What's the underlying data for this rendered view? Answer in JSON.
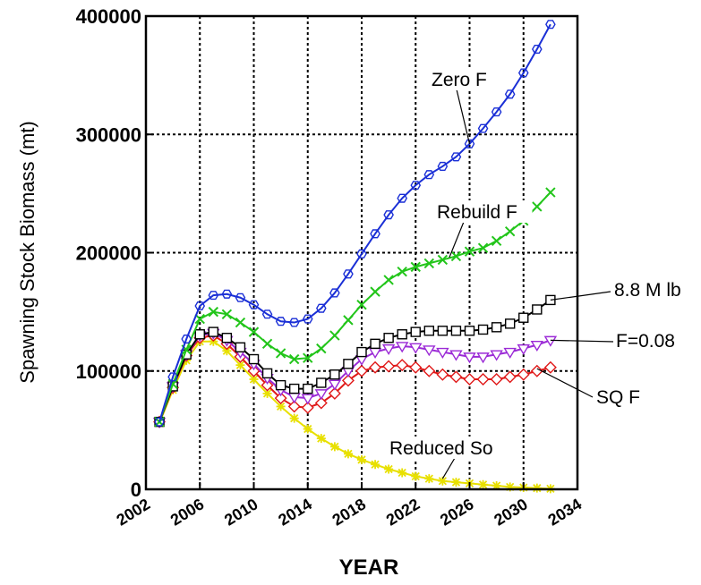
{
  "chart_data": {
    "type": "line",
    "title": "",
    "xlabel": "YEAR",
    "ylabel": "Spawning Stock Biomass (mt)",
    "xlim": [
      2002,
      2034
    ],
    "ylim": [
      0,
      400000
    ],
    "xticks": [
      "2002",
      "2006",
      "2010",
      "2014",
      "2018",
      "2022",
      "2026",
      "2030",
      "2034"
    ],
    "yticks": [
      "0",
      "100000",
      "200000",
      "300000",
      "400000"
    ],
    "grid": true,
    "x": [
      2003,
      2004,
      2005,
      2006,
      2007,
      2008,
      2009,
      2010,
      2011,
      2012,
      2013,
      2014,
      2015,
      2016,
      2017,
      2018,
      2019,
      2020,
      2021,
      2022,
      2023,
      2024,
      2025,
      2026,
      2027,
      2028,
      2029,
      2030,
      2031,
      2032
    ],
    "series": [
      {
        "name": "Zero F",
        "color": "#1a2fd6",
        "marker": "hexagon",
        "values": [
          57000,
          95000,
          127000,
          155000,
          164000,
          165000,
          162000,
          156000,
          148000,
          142000,
          141000,
          144000,
          153000,
          166000,
          182000,
          199000,
          216000,
          232000,
          246000,
          257000,
          266000,
          273000,
          281000,
          292000,
          305000,
          319000,
          334000,
          352000,
          372000,
          393000
        ]
      },
      {
        "name": "Rebuild F",
        "color": "#22c51a",
        "marker": "x",
        "values": [
          57000,
          89000,
          118000,
          144000,
          150000,
          148000,
          141000,
          133000,
          123000,
          115000,
          110000,
          111000,
          119000,
          130000,
          143000,
          156000,
          167000,
          177000,
          184000,
          188000,
          191000,
          194000,
          197000,
          201000,
          204000,
          210000,
          218000,
          227000,
          239000,
          251000
        ]
      },
      {
        "name": "8.8 M lb",
        "color": "#000000",
        "marker": "square",
        "values": [
          57000,
          87000,
          114000,
          131000,
          133000,
          128000,
          120000,
          110000,
          98000,
          88000,
          85000,
          85000,
          90000,
          97000,
          106000,
          116000,
          123000,
          128000,
          131000,
          133000,
          134000,
          134000,
          134000,
          134000,
          135000,
          137000,
          140000,
          145000,
          152000,
          160000
        ]
      },
      {
        "name": "F=0.08",
        "color": "#9b2ad6",
        "marker": "triangle-down",
        "values": [
          57000,
          87000,
          114000,
          130000,
          132000,
          126000,
          116000,
          106000,
          94000,
          84000,
          78000,
          77000,
          81000,
          89000,
          100000,
          110000,
          116000,
          119000,
          121000,
          120000,
          118000,
          116000,
          114000,
          112000,
          112000,
          114000,
          116000,
          119000,
          122000,
          126000
        ]
      },
      {
        "name": "SQ F",
        "color": "#e01818",
        "marker": "diamond",
        "values": [
          57000,
          86000,
          113000,
          128000,
          130000,
          123000,
          112000,
          100000,
          88000,
          77000,
          70000,
          69000,
          73000,
          81000,
          92000,
          100000,
          103000,
          104000,
          105000,
          103000,
          100000,
          97000,
          95000,
          93000,
          93000,
          93000,
          95000,
          97000,
          100000,
          103000
        ]
      },
      {
        "name": "Reduced So",
        "color": "#e8e000",
        "marker": "star",
        "values": [
          56000,
          84000,
          109000,
          125000,
          125000,
          117000,
          105000,
          93000,
          81000,
          70000,
          60000,
          51000,
          43000,
          36000,
          30000,
          25000,
          21000,
          17000,
          14000,
          11000,
          9000,
          7000,
          6000,
          5000,
          4000,
          3000,
          2000,
          1500,
          1000,
          500
        ]
      }
    ],
    "annotations": [
      {
        "text": "Zero F",
        "points_to_series": "Zero F"
      },
      {
        "text": "Rebuild F",
        "points_to_series": "Rebuild F"
      },
      {
        "text": "8.8 M lb",
        "points_to_series": "8.8 M lb"
      },
      {
        "text": "F=0.08",
        "points_to_series": "F=0.08"
      },
      {
        "text": "SQ F",
        "points_to_series": "SQ F"
      },
      {
        "text": "Reduced So",
        "points_to_series": "Reduced So"
      }
    ]
  }
}
